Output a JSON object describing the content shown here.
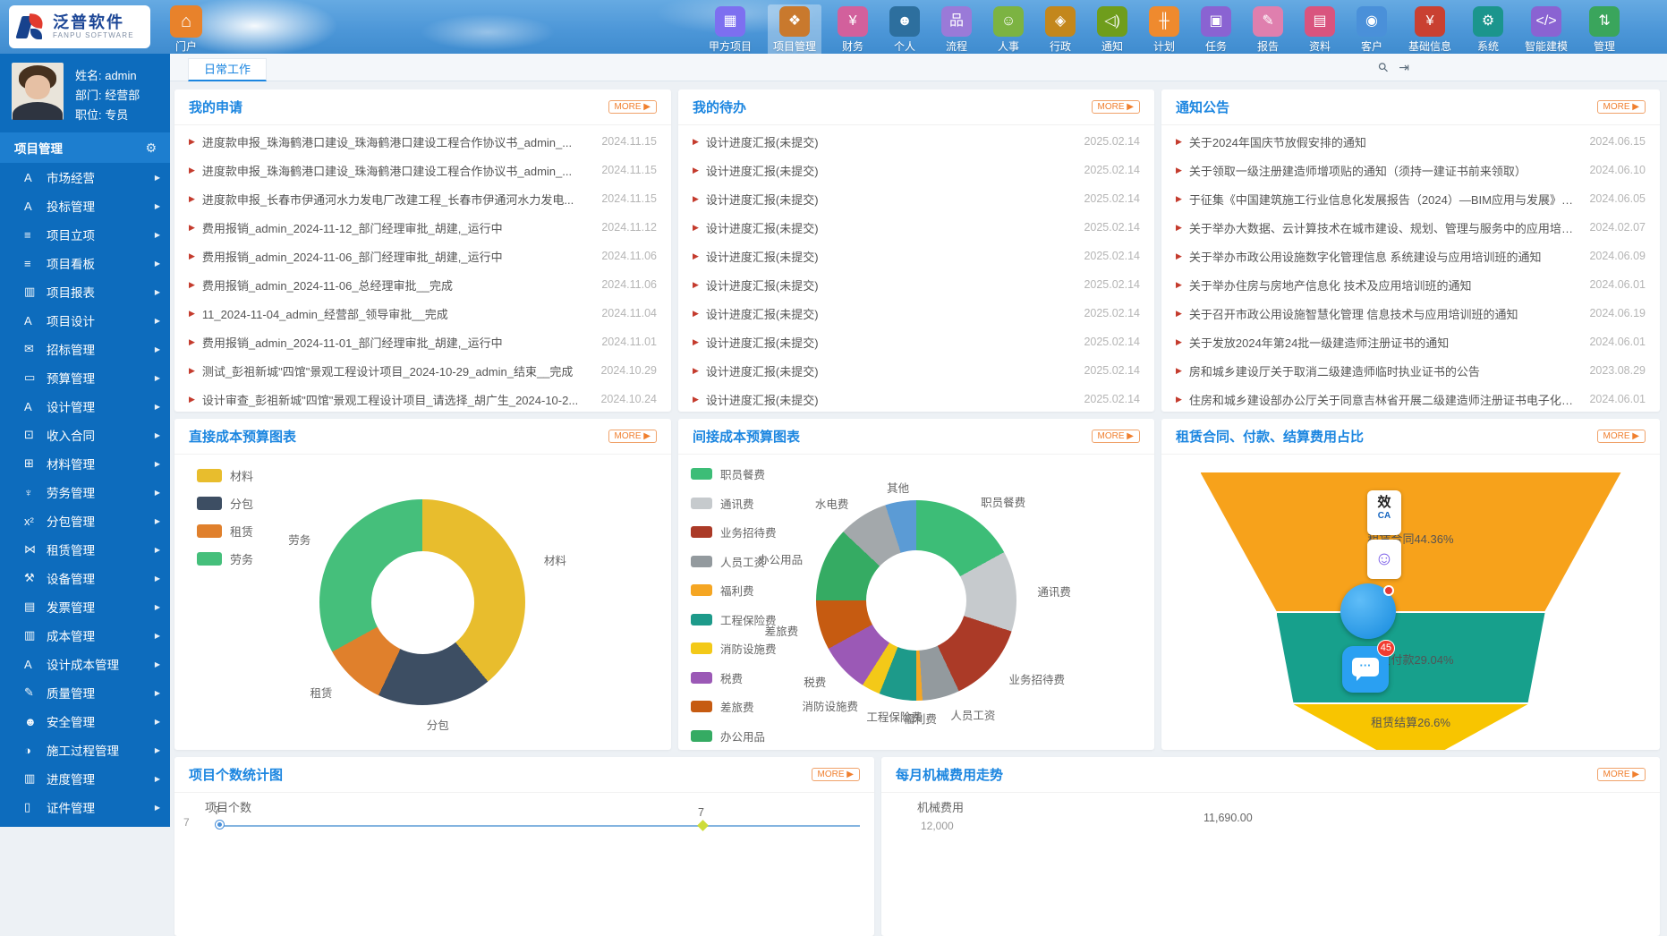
{
  "ui": {
    "more_label": "MORE ▶"
  },
  "header": {
    "logo_cn": "泛普软件",
    "logo_en": "FANPU SOFTWARE"
  },
  "portal": {
    "label": "门户"
  },
  "topnav": {
    "items": [
      {
        "label": "甲方项目",
        "glyph": "▦",
        "color": "#7d6ff0",
        "icon": "owner-project-icon",
        "active": false
      },
      {
        "label": "项目管理",
        "glyph": "❖",
        "color": "#c9792d",
        "icon": "project-mgmt-icon",
        "active": true
      },
      {
        "label": "财务",
        "glyph": "¥",
        "color": "#d2609c",
        "icon": "finance-icon",
        "active": false
      },
      {
        "label": "个人",
        "glyph": "☻",
        "color": "#2d6f9e",
        "icon": "personal-icon",
        "active": false
      },
      {
        "label": "流程",
        "glyph": "品",
        "color": "#9a7ad8",
        "icon": "workflow-icon",
        "active": false
      },
      {
        "label": "人事",
        "glyph": "☺",
        "color": "#7cb342",
        "icon": "hr-icon",
        "active": false
      },
      {
        "label": "行政",
        "glyph": "◈",
        "color": "#c3871c",
        "icon": "admin-icon",
        "active": false
      },
      {
        "label": "通知",
        "glyph": "◁)",
        "color": "#6f9d1c",
        "icon": "speaker-icon",
        "active": false
      },
      {
        "label": "计划",
        "glyph": "╫",
        "color": "#ef8a2e",
        "icon": "plan-icon",
        "active": false
      },
      {
        "label": "任务",
        "glyph": "▣",
        "color": "#8a63d2",
        "icon": "task-icon",
        "active": false
      },
      {
        "label": "报告",
        "glyph": "✎",
        "color": "#df7fae",
        "icon": "report-icon",
        "active": false
      },
      {
        "label": "资料",
        "glyph": "▤",
        "color": "#d9547e",
        "icon": "docs-icon",
        "active": false
      },
      {
        "label": "客户",
        "glyph": "◉",
        "color": "#4a90d9",
        "icon": "customer-icon",
        "active": false
      },
      {
        "label": "基础信息",
        "glyph": "¥",
        "color": "#c94031",
        "icon": "base-info-icon",
        "active": false
      },
      {
        "label": "系统",
        "glyph": "⚙",
        "color": "#1b958d",
        "icon": "system-gear-icon",
        "active": false
      },
      {
        "label": "智能建模",
        "glyph": "</>",
        "color": "#8a63d2",
        "icon": "modeling-code-icon",
        "active": false
      },
      {
        "label": "管理",
        "glyph": "⇅",
        "color": "#3aa55c",
        "icon": "manage-icon",
        "active": false
      }
    ]
  },
  "user": {
    "name": "姓名: admin",
    "dept": "部门: 经营部",
    "title": "职位: 专员"
  },
  "sidebar": {
    "header": "项目管理",
    "items": [
      {
        "label": "市场经营",
        "glyph": "A",
        "icon": "market-icon"
      },
      {
        "label": "投标管理",
        "glyph": "A",
        "icon": "bidding-icon"
      },
      {
        "label": "项目立项",
        "glyph": "≡",
        "icon": "initiation-icon"
      },
      {
        "label": "项目看板",
        "glyph": "≡",
        "icon": "kanban-icon"
      },
      {
        "label": "项目报表",
        "glyph": "▥",
        "icon": "project-report-icon"
      },
      {
        "label": "项目设计",
        "glyph": "A",
        "icon": "project-design-icon"
      },
      {
        "label": "招标管理",
        "glyph": "✉",
        "icon": "tender-icon"
      },
      {
        "label": "预算管理",
        "glyph": "▭",
        "icon": "budget-icon"
      },
      {
        "label": "设计管理",
        "glyph": "A",
        "icon": "design-mgmt-icon"
      },
      {
        "label": "收入合同",
        "glyph": "⊡",
        "icon": "income-contract-icon"
      },
      {
        "label": "材料管理",
        "glyph": "⊞",
        "icon": "material-icon"
      },
      {
        "label": "劳务管理",
        "glyph": "♆",
        "icon": "labor-icon"
      },
      {
        "label": "分包管理",
        "glyph": "x²",
        "icon": "subcontract-icon"
      },
      {
        "label": "租赁管理",
        "glyph": "⋈",
        "icon": "rental-icon"
      },
      {
        "label": "设备管理",
        "glyph": "⚒",
        "icon": "equipment-icon"
      },
      {
        "label": "发票管理",
        "glyph": "▤",
        "icon": "invoice-icon"
      },
      {
        "label": "成本管理",
        "glyph": "▥",
        "icon": "cost-icon"
      },
      {
        "label": "设计成本管理",
        "glyph": "A",
        "icon": "design-cost-icon"
      },
      {
        "label": "质量管理",
        "glyph": "✎",
        "icon": "quality-icon"
      },
      {
        "label": "安全管理",
        "glyph": "☻",
        "icon": "safety-icon"
      },
      {
        "label": "施工过程管理",
        "glyph": "◑",
        "icon": "construction-icon"
      },
      {
        "label": "进度管理",
        "glyph": "▥",
        "icon": "progress-icon"
      },
      {
        "label": "证件管理",
        "glyph": "▯",
        "icon": "certificate-icon"
      }
    ]
  },
  "tabs": {
    "active": "日常工作"
  },
  "panels": {
    "my_requests": {
      "title": "我的申请",
      "items": [
        {
          "text": "进度款申报_珠海鹤港口建设_珠海鹤港口建设工程合作协议书_admin_...",
          "date": "2024.11.15"
        },
        {
          "text": "进度款申报_珠海鹤港口建设_珠海鹤港口建设工程合作协议书_admin_...",
          "date": "2024.11.15"
        },
        {
          "text": "进度款申报_长春市伊通河水力发电厂改建工程_长春市伊通河水力发电...",
          "date": "2024.11.15"
        },
        {
          "text": "费用报销_admin_2024-11-12_部门经理审批_胡建,_运行中",
          "date": "2024.11.12"
        },
        {
          "text": "费用报销_admin_2024-11-06_部门经理审批_胡建,_运行中",
          "date": "2024.11.06"
        },
        {
          "text": "费用报销_admin_2024-11-06_总经理审批__完成",
          "date": "2024.11.06"
        },
        {
          "text": "11_2024-11-04_admin_经营部_领导审批__完成",
          "date": "2024.11.04"
        },
        {
          "text": "费用报销_admin_2024-11-01_部门经理审批_胡建,_运行中",
          "date": "2024.11.01"
        },
        {
          "text": "测试_彭祖新城\"四馆\"景观工程设计项目_2024-10-29_admin_结束__完成",
          "date": "2024.10.29"
        },
        {
          "text": "设计审查_彭祖新城\"四馆\"景观工程设计项目_请选择_胡广生_2024-10-2...",
          "date": "2024.10.24"
        }
      ]
    },
    "my_todos": {
      "title": "我的待办",
      "items": [
        {
          "text": "设计进度汇报(未提交)",
          "date": "2025.02.14"
        },
        {
          "text": "设计进度汇报(未提交)",
          "date": "2025.02.14"
        },
        {
          "text": "设计进度汇报(未提交)",
          "date": "2025.02.14"
        },
        {
          "text": "设计进度汇报(未提交)",
          "date": "2025.02.14"
        },
        {
          "text": "设计进度汇报(未提交)",
          "date": "2025.02.14"
        },
        {
          "text": "设计进度汇报(未提交)",
          "date": "2025.02.14"
        },
        {
          "text": "设计进度汇报(未提交)",
          "date": "2025.02.14"
        },
        {
          "text": "设计进度汇报(未提交)",
          "date": "2025.02.14"
        },
        {
          "text": "设计进度汇报(未提交)",
          "date": "2025.02.14"
        },
        {
          "text": "设计进度汇报(未提交)",
          "date": "2025.02.14"
        }
      ]
    },
    "notices": {
      "title": "通知公告",
      "items": [
        {
          "text": "关于2024年国庆节放假安排的通知",
          "date": "2024.06.15"
        },
        {
          "text": "关于领取一级注册建造师增项贴的通知（须持一建证书前来领取）",
          "date": "2024.06.10"
        },
        {
          "text": "于征集《中国建筑施工行业信息化发展报告（2024）—BIM应用与发展》材料...",
          "date": "2024.06.05"
        },
        {
          "text": "关于举办大数据、云计算技术在城市建设、规划、管理与服务中的应用培训班...",
          "date": "2024.02.07"
        },
        {
          "text": "关于举办市政公用设施数字化管理信息 系统建设与应用培训班的通知",
          "date": "2024.06.09"
        },
        {
          "text": "关于举办住房与房地产信息化 技术及应用培训班的通知",
          "date": "2024.06.01"
        },
        {
          "text": "关于召开市政公用设施智慧化管理 信息技术与应用培训班的通知",
          "date": "2024.06.19"
        },
        {
          "text": "关于发放2024年第24批一级建造师注册证书的通知",
          "date": "2024.06.01"
        },
        {
          "text": "房和城乡建设厅关于取消二级建造师临时执业证书的公告",
          "date": "2023.08.29"
        },
        {
          "text": "住房和城乡建设部办公厅关于同意吉林省开展二级建造师注册证书电子化试点...",
          "date": "2024.06.01"
        }
      ]
    }
  },
  "chart_data": [
    {
      "type": "pie",
      "donut": true,
      "title": "直接成本预算图表",
      "legend_position": "top-left",
      "slices": [
        {
          "label": "材料",
          "pct": 39,
          "color": "#e8bd2d"
        },
        {
          "label": "分包",
          "pct": 18,
          "color": "#3d4e63"
        },
        {
          "label": "租赁",
          "pct": 10,
          "color": "#e0802c"
        },
        {
          "label": "劳务",
          "pct": 33,
          "color": "#45bf7b"
        }
      ]
    },
    {
      "type": "pie",
      "donut": true,
      "title": "间接成本预算图表",
      "legend_position": "left",
      "slices": [
        {
          "label": "职员餐费",
          "pct": 17,
          "color": "#3dbd77"
        },
        {
          "label": "通讯费",
          "pct": 13,
          "color": "#c6cacd"
        },
        {
          "label": "业务招待费",
          "pct": 13,
          "color": "#ab3a27"
        },
        {
          "label": "人员工资",
          "pct": 6,
          "color": "#939a9e"
        },
        {
          "label": "福利费",
          "pct": 1,
          "color": "#f5a623"
        },
        {
          "label": "工程保险费",
          "pct": 6,
          "color": "#1d9a8a"
        },
        {
          "label": "消防设施费",
          "pct": 3,
          "color": "#f3c918"
        },
        {
          "label": "税费",
          "pct": 8,
          "color": "#9b59b6"
        },
        {
          "label": "差旅费",
          "pct": 8,
          "color": "#c65b11"
        },
        {
          "label": "办公用品",
          "pct": 12,
          "color": "#35ab63"
        },
        {
          "label": "水电费",
          "pct": 8,
          "color": "#a3a8ab"
        },
        {
          "label": "其他",
          "pct": 5,
          "color": "#5b9bd5"
        }
      ]
    },
    {
      "type": "funnel",
      "title": "租赁合同、付款、结算费用占比",
      "stages": [
        {
          "label": "租赁合同44.36%",
          "value": 44.36,
          "color": "#f7a21b"
        },
        {
          "label": "租赁付款29.04%",
          "value": 29.04,
          "color": "#17a08c"
        },
        {
          "label": "租赁结算26.6%",
          "value": 26.6,
          "color": "#f8c500"
        }
      ]
    },
    {
      "type": "line",
      "title": "项目个数统计图",
      "series_label": "项目个数",
      "ytick": "7",
      "points": [
        {
          "label": "7"
        },
        {
          "label": "7"
        }
      ]
    },
    {
      "type": "line",
      "title": "每月机械费用走势",
      "series_label": "机械费用",
      "ytick": "12,000",
      "value_label": "11,690.00"
    }
  ],
  "floating": {
    "ca_top": "效",
    "ca_bottom": "CA",
    "chat_badge": "45"
  }
}
